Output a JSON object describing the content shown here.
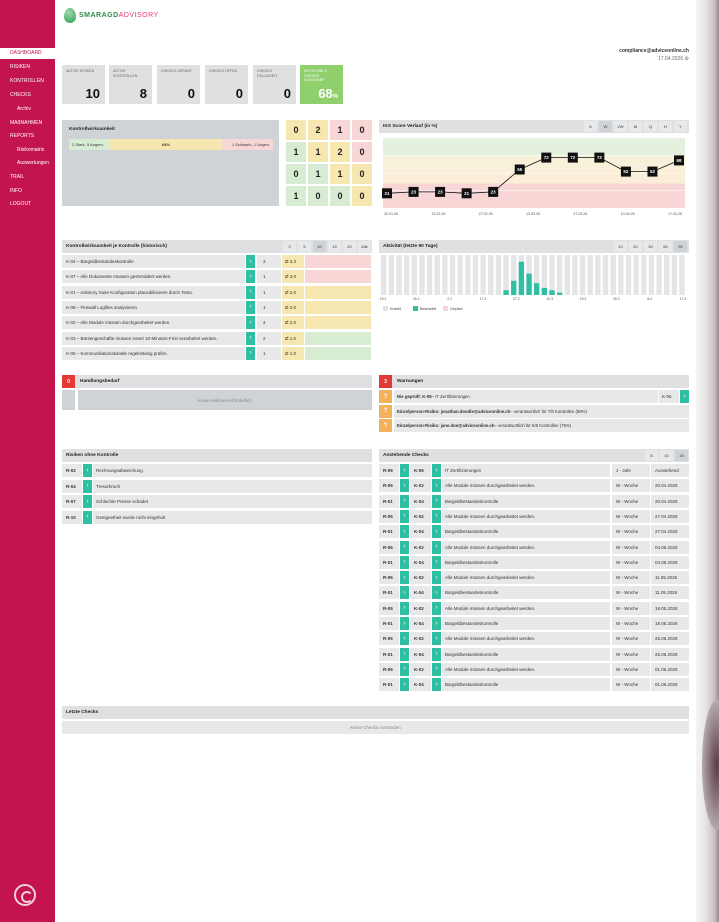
{
  "brand": {
    "part1": "SMARAGD",
    "part2": "ADVISORY"
  },
  "user": {
    "email": "compliance@adviceonline.ch",
    "date": "17.04.2026"
  },
  "sidebar": {
    "items": [
      {
        "label": "DASHBOARD"
      },
      {
        "label": "RISIKEN"
      },
      {
        "label": "KONTROLLEN"
      },
      {
        "label": "CHECKS"
      },
      {
        "label": "Archiv"
      },
      {
        "label": "MAßNAHMEN"
      },
      {
        "label": "REPORTS"
      },
      {
        "label": "Risikomatrix"
      },
      {
        "label": "Auswertungen"
      },
      {
        "label": "TRAIL"
      },
      {
        "label": "INFO"
      },
      {
        "label": "LOGOUT"
      }
    ]
  },
  "kpis": [
    {
      "label": "AKTIVE RISIKEN",
      "value": "10"
    },
    {
      "label": "AKTIVE KONTROLLEN",
      "value": "8"
    },
    {
      "label": "CHECKS GERANT",
      "value": "0"
    },
    {
      "label": "CHECKS OFFEN",
      "value": "0"
    },
    {
      "label": "CHECKS FÄLLIGSEIT",
      "value": "0"
    },
    {
      "label": "IKS SCORE 3 CHECKS DURCHGEF",
      "value": "68",
      "unit": "%"
    }
  ],
  "kontroll": {
    "title": "Kontrollwirksamkeit",
    "seg1": "2 Stark, 5 Angem.",
    "seg2": "64%",
    "seg3": "1 Schwach, 1 Ungen.",
    "seg1_frac": 0.2,
    "seg2_frac": 0.55,
    "seg3_frac": 0.25
  },
  "matrix": {
    "values": [
      [
        "0",
        "2",
        "1",
        "0"
      ],
      [
        "1",
        "1",
        "2",
        "0"
      ],
      [
        "0",
        "1",
        "1",
        "0"
      ],
      [
        "1",
        "0",
        "0",
        "0"
      ]
    ],
    "colors": [
      [
        "#f6e7b0",
        "#f6e7b0",
        "#f8d6d6",
        "#f8d6d6"
      ],
      [
        "#d8ecd4",
        "#f6e7b0",
        "#f6e7b0",
        "#f8d6d6"
      ],
      [
        "#d8ecd4",
        "#d8ecd4",
        "#f6e7b0",
        "#f6e7b0"
      ],
      [
        "#d8ecd4",
        "#d8ecd4",
        "#d8ecd4",
        "#f6e7b0"
      ]
    ]
  },
  "iks": {
    "title": "IKS Score Verlauf (in %)",
    "ranges": [
      "6",
      "W",
      "2W",
      "M",
      "Q",
      "H",
      "Y"
    ],
    "selected": 1,
    "chart_data": {
      "type": "line",
      "values": [
        21,
        23,
        23,
        21,
        23,
        55,
        72,
        72,
        72,
        52,
        52,
        68
      ],
      "ylim": [
        0,
        100
      ],
      "xticks": [
        "30.01.26",
        "13.02.26",
        "27.02.26",
        "13.03.26",
        "27.03.26",
        "10.04.26",
        "17.04.26"
      ]
    }
  },
  "kontrollHist": {
    "title": "Kontrollwirksamkeit je Kontrolle (historisch)",
    "tabs": [
      "3",
      "5",
      "10",
      "15",
      "20",
      "Alle"
    ],
    "selected": 2,
    "rows": [
      {
        "text": "K-04 – Bargeldbestandeskontrolle",
        "n": "3",
        "score": "Ø 3.3"
      },
      {
        "text": "K-07 – Alle Dokumente müssen geshreddert werden.",
        "n": "1",
        "score": "Ø 3.0"
      },
      {
        "text": "K-01 – Advisory Suite Konfiguration plausibilisieren durch Tests.",
        "n": "1",
        "score": "Ø 2.0"
      },
      {
        "text": "K-08 – Firewall Logfiles analysieren",
        "n": "1",
        "score": "Ø 2.0"
      },
      {
        "text": "K-02 – Alle Module müssen durchgearbeitet werden.",
        "n": "4",
        "score": "Ø 2.0"
      },
      {
        "text": "K-03 – Börsengeschäfte müssen innert 10-Minuten-Frist verarbeitet werden.",
        "n": "2",
        "score": "Ø 1.0"
      },
      {
        "text": "K-05 – Kommunikationskanäle regelmässig prüfen.",
        "n": "1",
        "score": "Ø 1.0"
      }
    ]
  },
  "aktivitaet": {
    "title": "Aktivität (letzte 90 Tage)",
    "tabs": [
      "10",
      "20",
      "30",
      "60",
      "90"
    ],
    "selected": 4,
    "chart_data": {
      "type": "bar",
      "series": [
        {
          "name": "Erstellt",
          "values": [
            0,
            0,
            0,
            0,
            0,
            0,
            0,
            0,
            0,
            0,
            0,
            0,
            0,
            0,
            0,
            0,
            0,
            0,
            0,
            0,
            0,
            0,
            0,
            0,
            0,
            0,
            0,
            0,
            0,
            0,
            0,
            0,
            0,
            0,
            0,
            0,
            0,
            0,
            0,
            0
          ]
        },
        {
          "name": "Bearbeitet",
          "values": [
            0,
            0,
            0,
            0,
            0,
            0,
            0,
            0,
            0,
            0,
            0,
            0,
            0,
            0,
            0,
            0,
            2,
            6,
            14,
            9,
            5,
            3,
            2,
            1,
            0,
            0,
            0,
            0,
            0,
            0,
            0,
            0,
            0,
            0,
            0,
            0,
            0,
            0,
            0,
            0
          ]
        },
        {
          "name": "Geplant",
          "values": [
            0,
            0,
            0,
            0,
            0,
            0,
            0,
            0,
            0,
            0,
            0,
            0,
            0,
            0,
            0,
            0,
            0,
            0,
            0,
            0,
            0,
            0,
            0,
            0,
            0,
            0,
            0,
            0,
            0,
            0,
            0,
            0,
            0,
            0,
            0,
            0,
            0,
            0,
            0,
            0
          ]
        }
      ],
      "xticks": [
        "19.1",
        "26.1",
        "2.2",
        "17.2",
        "27.2",
        "10.3",
        "19.3",
        "28.3",
        "8.4",
        "17.4"
      ]
    }
  },
  "handlung": {
    "count": "0",
    "title": "Handlungsbedarf",
    "empty": "Keine Aktionen erforderlich"
  },
  "warnungen": {
    "count": "3",
    "title": "Warnungen",
    "items": [
      {
        "bold": "Nie geprüft: K-06",
        "rest": " – IT Zertifizierungen",
        "tag": "K-06"
      },
      {
        "bold": "Einzelperson-Risiko: jonathan.doodle@adviceonline.ch",
        "rest": " – verantwortlich für 7/8 Kontrollen (88%)",
        "tag": ""
      },
      {
        "bold": "Einzelperson-Risiko: jane.doe@adviceonline.ch",
        "rest": " – verantwortlich für 6/8 Kontrollen (75%)",
        "tag": ""
      }
    ]
  },
  "risikenOhne": {
    "title": "Risiken ohne Kontrolle",
    "rows": [
      {
        "id": "R-02",
        "text": "Rechnungsabweichung"
      },
      {
        "id": "R-04",
        "text": "Tresorbruch"
      },
      {
        "id": "R-07",
        "text": "Schlechte Presse schadet"
      },
      {
        "id": "R-10",
        "text": "Geeignetheit wurde nicht eingeholt"
      }
    ]
  },
  "anstehend": {
    "title": "Anstehende Checks",
    "tabs": [
      "5",
      "10",
      "15"
    ],
    "selected": 2,
    "rows": [
      {
        "r": "R-09",
        "k": "K-06",
        "text": "IT Zertifizierungen",
        "freq": "J - Jahr",
        "date": "Ausstehend"
      },
      {
        "r": "R-05",
        "k": "K-02",
        "text": "Alle Module müssen durchgearbeitet werden.",
        "freq": "W - Woche",
        "date": "20.04.2026"
      },
      {
        "r": "R-01",
        "k": "K-04",
        "text": "Bargeldbestandeskontrolle",
        "freq": "W - Woche",
        "date": "20.04.2026"
      },
      {
        "r": "R-05",
        "k": "K-02",
        "text": "Alle Module müssen durchgearbeitet werden.",
        "freq": "W - Woche",
        "date": "27.04.2026"
      },
      {
        "r": "R-01",
        "k": "K-04",
        "text": "Bargeldbestandeskontrolle",
        "freq": "W - Woche",
        "date": "27.04.2026"
      },
      {
        "r": "R-05",
        "k": "K-02",
        "text": "Alle Module müssen durchgearbeitet werden.",
        "freq": "W - Woche",
        "date": "04.05.2026"
      },
      {
        "r": "R-01",
        "k": "K-04",
        "text": "Bargeldbestandeskontrolle",
        "freq": "W - Woche",
        "date": "04.05.2026"
      },
      {
        "r": "R-05",
        "k": "K-02",
        "text": "Alle Module müssen durchgearbeitet werden.",
        "freq": "W - Woche",
        "date": "11.05.2026"
      },
      {
        "r": "R-01",
        "k": "K-04",
        "text": "Bargeldbestandeskontrolle",
        "freq": "W - Woche",
        "date": "11.05.2026"
      },
      {
        "r": "R-05",
        "k": "K-02",
        "text": "Alle Module müssen durchgearbeitet werden.",
        "freq": "W - Woche",
        "date": "18.05.2026"
      },
      {
        "r": "R-01",
        "k": "K-04",
        "text": "Bargeldbestandeskontrolle",
        "freq": "W - Woche",
        "date": "18.05.2026"
      },
      {
        "r": "R-05",
        "k": "K-02",
        "text": "Alle Module müssen durchgearbeitet werden.",
        "freq": "W - Woche",
        "date": "25.05.2026"
      },
      {
        "r": "R-01",
        "k": "K-04",
        "text": "Bargeldbestandeskontrolle",
        "freq": "W - Woche",
        "date": "25.05.2026"
      },
      {
        "r": "R-05",
        "k": "K-02",
        "text": "Alle Module müssen durchgearbeitet werden.",
        "freq": "W - Woche",
        "date": "01.06.2026"
      },
      {
        "r": "R-01",
        "k": "K-04",
        "text": "Bargeldbestandeskontrolle",
        "freq": "W - Woche",
        "date": "01.06.2026"
      }
    ]
  },
  "letzte": {
    "title": "Letzte Checks",
    "empty": "Keine Checks vorhanden"
  },
  "colors": {
    "brand": "#c4144e",
    "accent": "#2fbfa2",
    "score": "#8fcf6c",
    "warn": "#f2b15a",
    "danger": "#e53935"
  }
}
